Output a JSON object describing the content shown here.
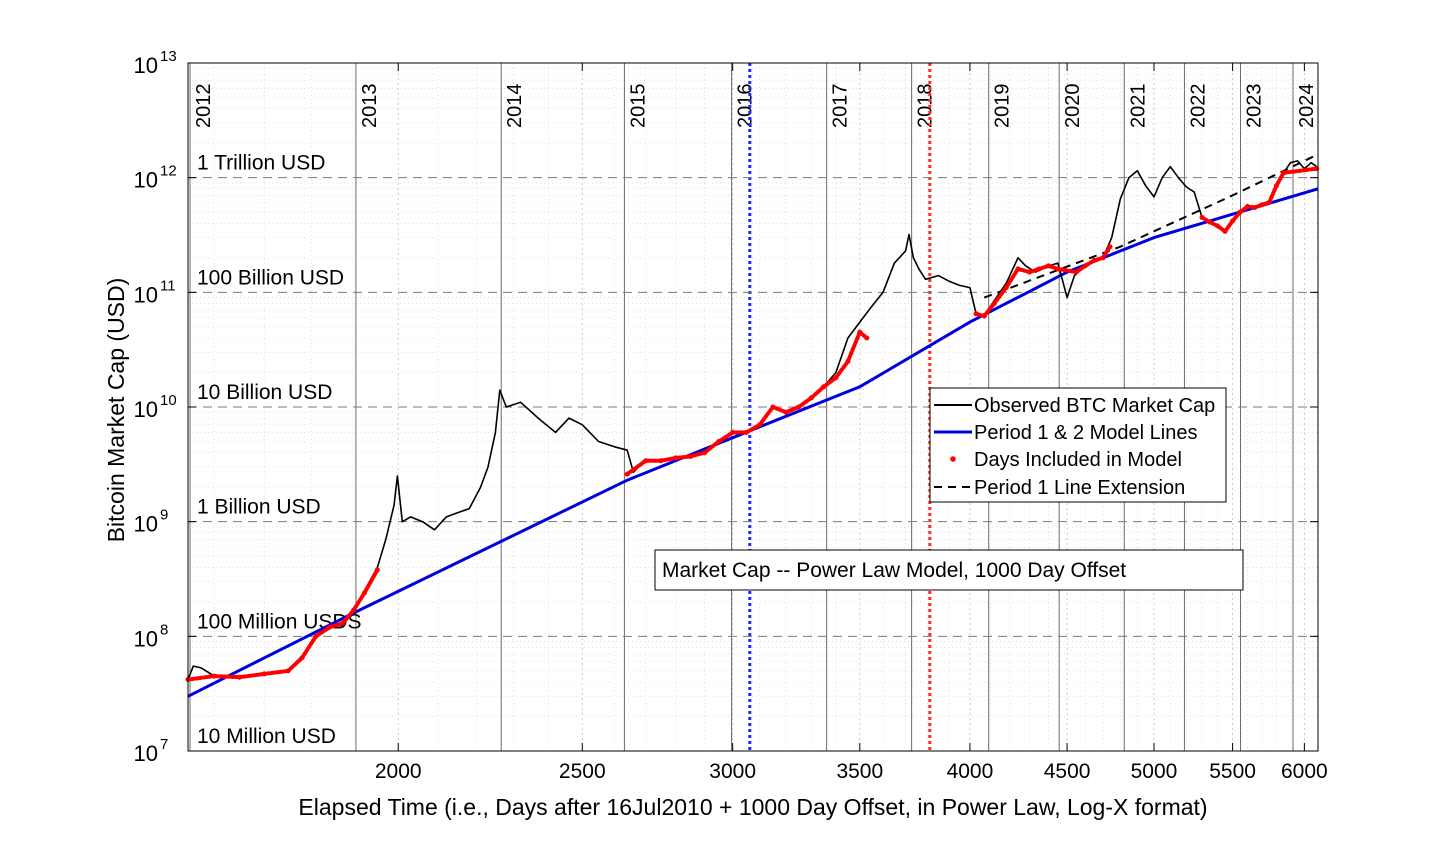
{
  "chart_data": {
    "type": "line",
    "title": "",
    "xlabel": "Elapsed Time (i.e., Days after 16Jul2010 + 1000 Day Offset, in Power Law, Log-X format)",
    "ylabel": "Bitcoin Market Cap (USD)",
    "x_scale": "log",
    "y_scale": "log",
    "xlim": [
      1550,
      6100
    ],
    "ylim": [
      10000000,
      10000000000000
    ],
    "xticks": [
      {
        "value": 2000,
        "label": "2000"
      },
      {
        "value": 2500,
        "label": "2500"
      },
      {
        "value": 3000,
        "label": "3000"
      },
      {
        "value": 3500,
        "label": "3500"
      },
      {
        "value": 4000,
        "label": "4000"
      },
      {
        "value": 4500,
        "label": "4500"
      },
      {
        "value": 5000,
        "label": "5000"
      },
      {
        "value": 5500,
        "label": "5500"
      },
      {
        "value": 6000,
        "label": "6000"
      }
    ],
    "yticks": [
      {
        "value": 10000000,
        "base": "10",
        "exp": "7"
      },
      {
        "value": 100000000,
        "base": "10",
        "exp": "8"
      },
      {
        "value": 1000000000,
        "base": "10",
        "exp": "9"
      },
      {
        "value": 10000000000,
        "base": "10",
        "exp": "10"
      },
      {
        "value": 100000000000,
        "base": "10",
        "exp": "11"
      },
      {
        "value": 1000000000000,
        "base": "10",
        "exp": "12"
      },
      {
        "value": 10000000000000,
        "base": "10",
        "exp": "13"
      }
    ],
    "grid": true,
    "year_markers": [
      {
        "label": "2012",
        "x": 1535
      },
      {
        "label": "2013",
        "x": 1900
      },
      {
        "label": "2014",
        "x": 2266
      },
      {
        "label": "2015",
        "x": 2631
      },
      {
        "label": "2016",
        "x": 2996
      },
      {
        "label": "2017",
        "x": 3362
      },
      {
        "label": "2018",
        "x": 3727
      },
      {
        "label": "2019",
        "x": 4092
      },
      {
        "label": "2020",
        "x": 4457
      },
      {
        "label": "2021",
        "x": 4823
      },
      {
        "label": "2022",
        "x": 5188
      },
      {
        "label": "2023",
        "x": 5553
      },
      {
        "label": "2024",
        "x": 5918
      }
    ],
    "special_lines": [
      {
        "x": 3063,
        "color": "#2424ff",
        "style": "dotted"
      },
      {
        "x": 3810,
        "color": "#ff2a2a",
        "style": "dotted"
      }
    ],
    "level_lines": [
      {
        "value": 10000000,
        "label": "10 Million USD"
      },
      {
        "value": 100000000,
        "label": "100 Million USDS"
      },
      {
        "value": 1000000000,
        "label": "1 Billion USD"
      },
      {
        "value": 10000000000,
        "label": "10 Billion USD"
      },
      {
        "value": 100000000000,
        "label": "100 Billion USD"
      },
      {
        "value": 1000000000000,
        "label": "1 Trillion USD"
      }
    ],
    "annotation": "Market Cap -- Power Law Model, 1000 Day Offset",
    "legend_position": "center-right",
    "series": [
      {
        "name": "Observed BTC Market Cap",
        "color": "#000000",
        "style": "solid",
        "points": [
          [
            1550,
            42000000
          ],
          [
            1560,
            55000000
          ],
          [
            1575,
            53000000
          ],
          [
            1600,
            45000000
          ],
          [
            1650,
            45000000
          ],
          [
            1700,
            47000000
          ],
          [
            1750,
            50000000
          ],
          [
            1780,
            65000000
          ],
          [
            1810,
            100000000
          ],
          [
            1840,
            120000000
          ],
          [
            1870,
            125000000
          ],
          [
            1895,
            170000000
          ],
          [
            1920,
            250000000
          ],
          [
            1950,
            400000000
          ],
          [
            1970,
            700000000
          ],
          [
            1990,
            1400000000
          ],
          [
            1998,
            2500000000
          ],
          [
            2010,
            1000000000
          ],
          [
            2030,
            1100000000
          ],
          [
            2060,
            1000000000
          ],
          [
            2090,
            850000000
          ],
          [
            2120,
            1100000000
          ],
          [
            2150,
            1200000000
          ],
          [
            2180,
            1300000000
          ],
          [
            2210,
            2000000000
          ],
          [
            2230,
            3000000000
          ],
          [
            2250,
            6000000000
          ],
          [
            2262,
            14000000000
          ],
          [
            2280,
            10000000000
          ],
          [
            2320,
            11000000000
          ],
          [
            2370,
            8000000000
          ],
          [
            2420,
            6000000000
          ],
          [
            2460,
            8000000000
          ],
          [
            2500,
            7000000000
          ],
          [
            2550,
            5000000000
          ],
          [
            2600,
            4500000000
          ],
          [
            2640,
            4200000000
          ],
          [
            2660,
            2700000000
          ],
          [
            2700,
            3500000000
          ],
          [
            2750,
            3400000000
          ],
          [
            2800,
            3600000000
          ],
          [
            2850,
            3700000000
          ],
          [
            2900,
            4000000000
          ],
          [
            2950,
            5000000000
          ],
          [
            3000,
            6000000000
          ],
          [
            3050,
            6000000000
          ],
          [
            3100,
            7000000000
          ],
          [
            3150,
            10000000000
          ],
          [
            3200,
            9000000000
          ],
          [
            3250,
            10000000000
          ],
          [
            3300,
            12000000000
          ],
          [
            3350,
            15000000000
          ],
          [
            3400,
            20000000000
          ],
          [
            3450,
            40000000000
          ],
          [
            3500,
            55000000000
          ],
          [
            3550,
            75000000000
          ],
          [
            3600,
            100000000000
          ],
          [
            3650,
            180000000000
          ],
          [
            3700,
            230000000000
          ],
          [
            3715,
            320000000000
          ],
          [
            3735,
            200000000000
          ],
          [
            3760,
            160000000000
          ],
          [
            3790,
            130000000000
          ],
          [
            3850,
            140000000000
          ],
          [
            3900,
            125000000000
          ],
          [
            3950,
            115000000000
          ],
          [
            4000,
            110000000000
          ],
          [
            4030,
            65000000000
          ],
          [
            4070,
            62000000000
          ],
          [
            4120,
            85000000000
          ],
          [
            4180,
            120000000000
          ],
          [
            4240,
            200000000000
          ],
          [
            4280,
            170000000000
          ],
          [
            4330,
            150000000000
          ],
          [
            4400,
            170000000000
          ],
          [
            4450,
            180000000000
          ],
          [
            4500,
            90000000000
          ],
          [
            4540,
            140000000000
          ],
          [
            4600,
            170000000000
          ],
          [
            4650,
            190000000000
          ],
          [
            4700,
            200000000000
          ],
          [
            4750,
            300000000000
          ],
          [
            4800,
            650000000000
          ],
          [
            4850,
            1000000000000
          ],
          [
            4900,
            1150000000000
          ],
          [
            4950,
            850000000000
          ],
          [
            5000,
            680000000000
          ],
          [
            5050,
            1000000000000
          ],
          [
            5100,
            1250000000000
          ],
          [
            5150,
            1000000000000
          ],
          [
            5200,
            830000000000
          ],
          [
            5250,
            750000000000
          ],
          [
            5300,
            450000000000
          ],
          [
            5350,
            410000000000
          ],
          [
            5400,
            380000000000
          ],
          [
            5450,
            340000000000
          ],
          [
            5500,
            420000000000
          ],
          [
            5550,
            500000000000
          ],
          [
            5600,
            560000000000
          ],
          [
            5650,
            550000000000
          ],
          [
            5700,
            580000000000
          ],
          [
            5750,
            610000000000
          ],
          [
            5800,
            850000000000
          ],
          [
            5850,
            1100000000000
          ],
          [
            5900,
            1350000000000
          ],
          [
            5950,
            1400000000000
          ],
          [
            6000,
            1200000000000
          ],
          [
            6050,
            1350000000000
          ],
          [
            6090,
            1250000000000
          ]
        ]
      },
      {
        "name": "Period 1 & 2 Model Lines",
        "color": "#0000dd",
        "style": "solid",
        "points": [
          [
            1550,
            30000000
          ],
          [
            1895,
            160000000
          ],
          [
            2640,
            2300000000
          ],
          [
            3063,
            6200000000
          ],
          [
            3500,
            15000000000
          ],
          [
            4000,
            55000000000
          ],
          [
            4500,
            150000000000
          ],
          [
            5000,
            300000000000
          ],
          [
            5500,
            480000000000
          ],
          [
            6100,
            800000000000
          ]
        ]
      },
      {
        "name": "Days Included in Model",
        "color": "#ff0000",
        "style": "dots",
        "segments": [
          [
            [
              1550,
              42000000
            ],
            [
              1600,
              45000000
            ],
            [
              1650,
              44000000
            ],
            [
              1700,
              47000000
            ],
            [
              1750,
              50000000
            ],
            [
              1780,
              65000000
            ],
            [
              1810,
              100000000
            ],
            [
              1840,
              120000000
            ],
            [
              1870,
              130000000
            ],
            [
              1895,
              170000000
            ],
            [
              1920,
              240000000
            ],
            [
              1950,
              380000000
            ]
          ],
          [
            [
              2640,
              2600000000
            ],
            [
              2700,
              3400000000
            ],
            [
              2750,
              3400000000
            ],
            [
              2800,
              3600000000
            ],
            [
              2850,
              3700000000
            ],
            [
              2900,
              4000000000
            ],
            [
              2950,
              5000000000
            ],
            [
              3000,
              6000000000
            ],
            [
              3050,
              6000000000
            ],
            [
              3100,
              7000000000
            ],
            [
              3150,
              10000000000
            ],
            [
              3200,
              9000000000
            ],
            [
              3250,
              10000000000
            ],
            [
              3300,
              12000000000
            ],
            [
              3350,
              15000000000
            ],
            [
              3400,
              18000000000
            ],
            [
              3450,
              25000000000
            ],
            [
              3500,
              45000000000
            ],
            [
              3530,
              40000000000
            ]
          ],
          [
            [
              4030,
              65000000000
            ],
            [
              4070,
              62000000000
            ],
            [
              4120,
              80000000000
            ],
            [
              4180,
              110000000000
            ],
            [
              4240,
              160000000000
            ],
            [
              4300,
              150000000000
            ],
            [
              4350,
              160000000000
            ],
            [
              4400,
              170000000000
            ],
            [
              4450,
              160000000000
            ],
            [
              4550,
              150000000000
            ],
            [
              4600,
              170000000000
            ],
            [
              4650,
              190000000000
            ],
            [
              4700,
              200000000000
            ],
            [
              4740,
              250000000000
            ]
          ],
          [
            [
              5300,
              450000000000
            ],
            [
              5350,
              410000000000
            ],
            [
              5400,
              380000000000
            ],
            [
              5450,
              340000000000
            ],
            [
              5500,
              420000000000
            ],
            [
              5550,
              500000000000
            ],
            [
              5600,
              560000000000
            ],
            [
              5650,
              550000000000
            ],
            [
              5700,
              580000000000
            ],
            [
              5750,
              610000000000
            ],
            [
              5800,
              850000000000
            ],
            [
              5850,
              1100000000000
            ],
            [
              6090,
              1200000000000
            ]
          ]
        ]
      },
      {
        "name": "Period 1 Line Extension",
        "color": "#000000",
        "style": "dashed",
        "points": [
          [
            4070,
            90000000000
          ],
          [
            4800,
            250000000000
          ],
          [
            5500,
            700000000000
          ],
          [
            6100,
            1600000000000
          ]
        ]
      }
    ]
  }
}
